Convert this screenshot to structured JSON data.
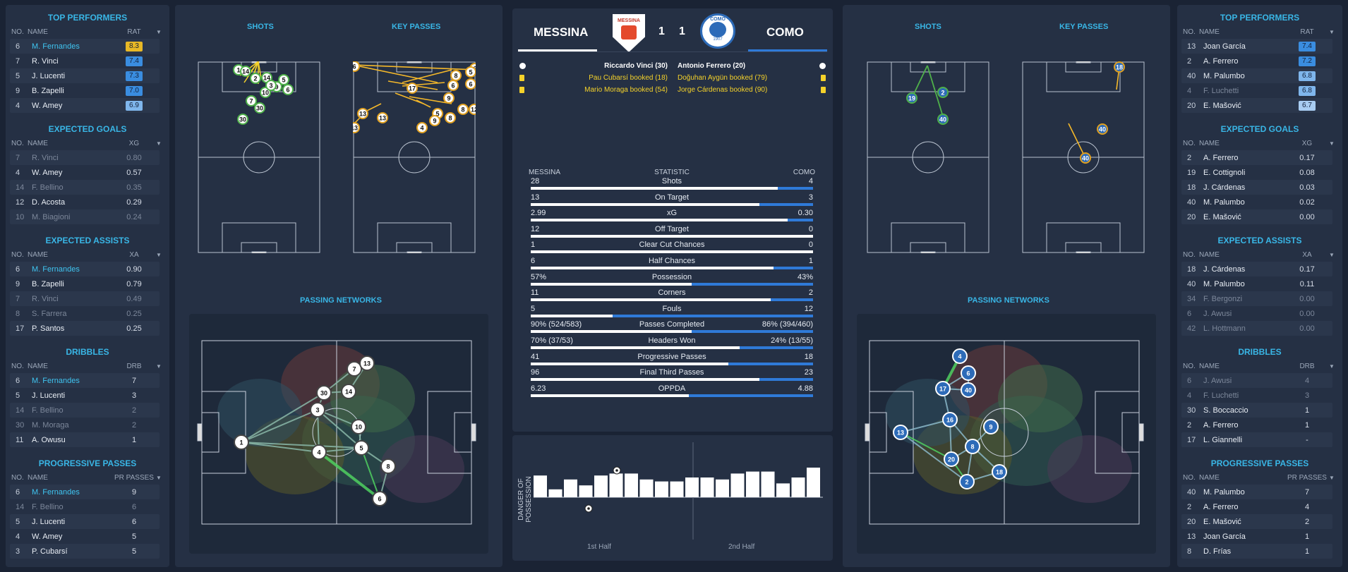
{
  "left_sidebar": {
    "top_performers": {
      "title": "TOP PERFORMERS",
      "cols": [
        "NO.",
        "NAME",
        "RAT"
      ],
      "rows": [
        {
          "no": "6",
          "name": "M. Fernandes",
          "val": "8.3",
          "color": "#e8b826",
          "hl": true
        },
        {
          "no": "7",
          "name": "R. Vinci",
          "val": "7.4",
          "color": "#3a8de0"
        },
        {
          "no": "5",
          "name": "J. Lucenti",
          "val": "7.3",
          "color": "#3a8de0"
        },
        {
          "no": "9",
          "name": "B. Zapelli",
          "val": "7.0",
          "color": "#3a8de0"
        },
        {
          "no": "4",
          "name": "W. Amey",
          "val": "6.9",
          "color": "#7fb6ec"
        }
      ]
    },
    "expected_goals": {
      "title": "EXPECTED GOALS",
      "cols": [
        "NO.",
        "NAME",
        "XG"
      ],
      "rows": [
        {
          "no": "7",
          "name": "R. Vinci",
          "val": "0.80",
          "dim": true
        },
        {
          "no": "4",
          "name": "W. Amey",
          "val": "0.57"
        },
        {
          "no": "14",
          "name": "F. Bellino",
          "val": "0.35",
          "dim": true
        },
        {
          "no": "12",
          "name": "D. Acosta",
          "val": "0.29"
        },
        {
          "no": "10",
          "name": "M. Biagioni",
          "val": "0.24",
          "dim": true
        }
      ]
    },
    "expected_assists": {
      "title": "EXPECTED ASSISTS",
      "cols": [
        "NO.",
        "NAME",
        "XA"
      ],
      "rows": [
        {
          "no": "6",
          "name": "M. Fernandes",
          "val": "0.90",
          "hl": true
        },
        {
          "no": "9",
          "name": "B. Zapelli",
          "val": "0.79"
        },
        {
          "no": "7",
          "name": "R. Vinci",
          "val": "0.49",
          "dim": true
        },
        {
          "no": "8",
          "name": "S. Farrera",
          "val": "0.25",
          "dim": true
        },
        {
          "no": "17",
          "name": "P. Santos",
          "val": "0.25"
        }
      ]
    },
    "dribbles": {
      "title": "DRIBBLES",
      "cols": [
        "NO.",
        "NAME",
        "DRB"
      ],
      "rows": [
        {
          "no": "6",
          "name": "M. Fernandes",
          "val": "7",
          "hl": true
        },
        {
          "no": "5",
          "name": "J. Lucenti",
          "val": "3"
        },
        {
          "no": "14",
          "name": "F. Bellino",
          "val": "2",
          "dim": true
        },
        {
          "no": "30",
          "name": "M. Moraga",
          "val": "2",
          "dim": true
        },
        {
          "no": "11",
          "name": "A. Owusu",
          "val": "1"
        }
      ]
    },
    "progressive_passes": {
      "title": "PROGRESSIVE PASSES",
      "cols": [
        "NO.",
        "NAME",
        "PR PASSES"
      ],
      "rows": [
        {
          "no": "6",
          "name": "M. Fernandes",
          "val": "9",
          "hl": true
        },
        {
          "no": "14",
          "name": "F. Bellino",
          "val": "6",
          "dim": true
        },
        {
          "no": "5",
          "name": "J. Lucenti",
          "val": "6"
        },
        {
          "no": "4",
          "name": "W. Amey",
          "val": "5"
        },
        {
          "no": "3",
          "name": "P. Cubarsí",
          "val": "5"
        }
      ]
    }
  },
  "right_sidebar": {
    "top_performers": {
      "title": "TOP PERFORMERS",
      "cols": [
        "NO.",
        "NAME",
        "RAT"
      ],
      "rows": [
        {
          "no": "13",
          "name": "Joan García",
          "val": "7.4",
          "color": "#3a8de0"
        },
        {
          "no": "2",
          "name": "A. Ferrero",
          "val": "7.2",
          "color": "#3a8de0"
        },
        {
          "no": "40",
          "name": "M. Palumbo",
          "val": "6.8",
          "color": "#7fb6ec"
        },
        {
          "no": "4",
          "name": "F. Luchetti",
          "val": "6.8",
          "color": "#7fb6ec",
          "dim": true
        },
        {
          "no": "20",
          "name": "E. Mašović",
          "val": "6.7",
          "color": "#a9cdf2"
        }
      ]
    },
    "expected_goals": {
      "title": "EXPECTED GOALS",
      "cols": [
        "NO.",
        "NAME",
        "XG"
      ],
      "rows": [
        {
          "no": "2",
          "name": "A. Ferrero",
          "val": "0.17"
        },
        {
          "no": "19",
          "name": "E. Cottignoli",
          "val": "0.08"
        },
        {
          "no": "18",
          "name": "J. Cárdenas",
          "val": "0.03"
        },
        {
          "no": "40",
          "name": "M. Palumbo",
          "val": "0.02"
        },
        {
          "no": "20",
          "name": "E. Mašović",
          "val": "0.00"
        }
      ]
    },
    "expected_assists": {
      "title": "EXPECTED ASSISTS",
      "cols": [
        "NO.",
        "NAME",
        "XA"
      ],
      "rows": [
        {
          "no": "18",
          "name": "J. Cárdenas",
          "val": "0.17"
        },
        {
          "no": "40",
          "name": "M. Palumbo",
          "val": "0.11"
        },
        {
          "no": "34",
          "name": "F. Bergonzi",
          "val": "0.00",
          "dim": true
        },
        {
          "no": "6",
          "name": "J. Awusi",
          "val": "0.00",
          "dim": true
        },
        {
          "no": "42",
          "name": "L. Hottmann",
          "val": "0.00",
          "dim": true
        }
      ]
    },
    "dribbles": {
      "title": "DRIBBLES",
      "cols": [
        "NO.",
        "NAME",
        "DRB"
      ],
      "rows": [
        {
          "no": "6",
          "name": "J. Awusi",
          "val": "4",
          "dim": true
        },
        {
          "no": "4",
          "name": "F. Luchetti",
          "val": "3",
          "dim": true
        },
        {
          "no": "30",
          "name": "S. Boccaccio",
          "val": "1"
        },
        {
          "no": "2",
          "name": "A. Ferrero",
          "val": "1"
        },
        {
          "no": "17",
          "name": "L. Giannelli",
          "val": "-"
        }
      ]
    },
    "progressive_passes": {
      "title": "PROGRESSIVE PASSES",
      "cols": [
        "NO.",
        "NAME",
        "PR PASSES"
      ],
      "rows": [
        {
          "no": "40",
          "name": "M. Palumbo",
          "val": "7"
        },
        {
          "no": "2",
          "name": "A. Ferrero",
          "val": "4"
        },
        {
          "no": "20",
          "name": "E. Mašović",
          "val": "2"
        },
        {
          "no": "13",
          "name": "Joan García",
          "val": "1"
        },
        {
          "no": "8",
          "name": "D. Frías",
          "val": "1"
        }
      ]
    }
  },
  "left_maps": {
    "shots": "SHOTS",
    "key_passes": "KEY PASSES",
    "passing": "PASSING NETWORKS"
  },
  "right_maps": {
    "shots": "SHOTS",
    "key_passes": "KEY PASSES",
    "passing": "PASSING NETWORKS"
  },
  "match": {
    "home_team": "MESSINA",
    "away_team": "COMO",
    "home_score": "1",
    "away_score": "1",
    "home_badge": "MESSINA",
    "away_badge_top": "COMO",
    "away_badge_bottom": "1907",
    "home_events": [
      {
        "text": "Riccardo Vinci (30)",
        "type": "goal"
      },
      {
        "text": "Pau Cubarsí booked (18)",
        "type": "yellow"
      },
      {
        "text": "Mario Moraga booked (54)",
        "type": "yellow"
      }
    ],
    "away_events": [
      {
        "text": "Antonio Ferrero (20)",
        "type": "goal"
      },
      {
        "text": "Doğuhan Aygün booked (79)",
        "type": "yellow"
      },
      {
        "text": "Jorge Cárdenas booked (90)",
        "type": "yellow"
      }
    ]
  },
  "stats": {
    "head_home": "MESSINA",
    "head_mid": "STATISTIC",
    "head_away": "COMO",
    "rows": [
      {
        "label": "Shots",
        "home": "28",
        "away": "4",
        "away_share": 0.125
      },
      {
        "label": "On Target",
        "home": "13",
        "away": "3",
        "away_share": 0.19
      },
      {
        "label": "xG",
        "home": "2.99",
        "away": "0.30",
        "away_share": 0.09
      },
      {
        "label": "Off Target",
        "home": "12",
        "away": "0",
        "away_share": 0
      },
      {
        "label": "Clear Cut Chances",
        "home": "1",
        "away": "0",
        "away_share": 0
      },
      {
        "label": "Half Chances",
        "home": "6",
        "away": "1",
        "away_share": 0.14
      },
      {
        "label": "Possession",
        "home": "57%",
        "away": "43%",
        "away_share": 0.43
      },
      {
        "label": "Corners",
        "home": "11",
        "away": "2",
        "away_share": 0.15
      },
      {
        "label": "Fouls",
        "home": "5",
        "away": "12",
        "away_share": 0.71
      },
      {
        "label": "Passes Completed",
        "home": "90% (524/583)",
        "away": "86% (394/460)",
        "away_share": 0.43
      },
      {
        "label": "Headers Won",
        "home": "70% (37/53)",
        "away": "24% (13/55)",
        "away_share": 0.26
      },
      {
        "label": "Progressive Passes",
        "home": "41",
        "away": "18",
        "away_share": 0.3
      },
      {
        "label": "Final Third Passes",
        "home": "96",
        "away": "23",
        "away_share": 0.19
      },
      {
        "label": "OPPDA",
        "home": "6.23",
        "away": "4.88",
        "away_share": 0.44
      }
    ]
  },
  "danger": {
    "ylabel": "DANGER OF POSSESSION",
    "first_half": "1st Half",
    "second_half": "2nd Half",
    "bars": [
      0.55,
      0.2,
      0.45,
      0.3,
      0.55,
      0.6,
      0.6,
      0.45,
      0.4,
      0.4,
      0.5,
      0.5,
      0.45,
      0.6,
      0.65,
      0.65,
      0.35,
      0.5,
      0.75
    ]
  },
  "colors": {
    "bg": "#1a2334",
    "panel": "#253044",
    "accent": "#39b6e6",
    "home": "#f5b82a",
    "away": "#2f7ad8",
    "card": "#f5d22a"
  }
}
